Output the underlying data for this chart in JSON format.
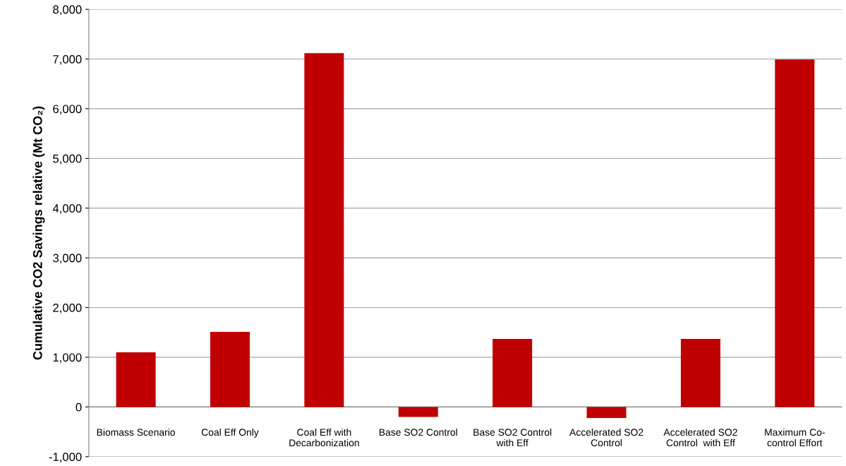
{
  "chart_data": {
    "type": "bar",
    "ylabel": "Cumulative CO2 Savings relative (Mt CO₂)",
    "categories": [
      "Biomass Scenario",
      "Coal Eff Only",
      "Coal Eff with\nDecarbonization",
      "Base SO2 Control",
      "Base SO2 Control\nwith Eff",
      "Accelerated SO2\nControl",
      "Accelerated SO2\nControl  with Eff",
      "Maximum Co-\ncontrol Effort"
    ],
    "values": [
      1100,
      1510,
      7120,
      -200,
      1370,
      -220,
      1370,
      6990
    ],
    "color": "#c00000",
    "ylim": [
      -1000,
      8000
    ],
    "yticks": [
      {
        "value": -1000,
        "label": "-1,000"
      },
      0,
      {
        "value": 1000,
        "label": "1,000"
      },
      {
        "value": 2000,
        "label": "2,000"
      },
      {
        "value": 3000,
        "label": "3,000"
      },
      {
        "value": 4000,
        "label": "4,000"
      },
      {
        "value": 5000,
        "label": "5,000"
      },
      {
        "value": 6000,
        "label": "6,000"
      },
      {
        "value": 7000,
        "label": "7,000"
      },
      {
        "value": 8000,
        "label": "8,000"
      }
    ],
    "grid": "y"
  }
}
